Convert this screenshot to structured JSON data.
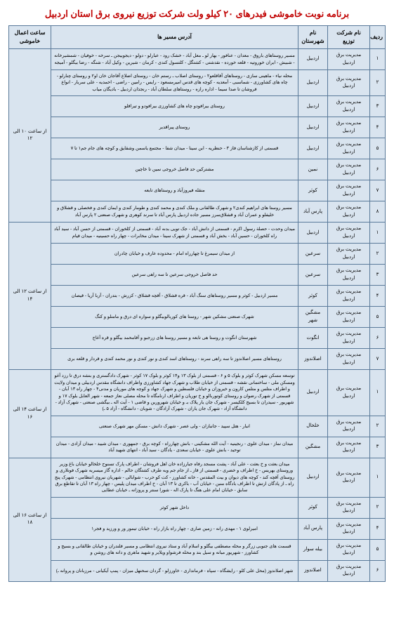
{
  "title": "برنامه نوبت خاموشی فیدرهای ۲۰ کیلو ولت شرکت توزیع نیروی برق استان اردبیل",
  "headers": {
    "row": "ردیف",
    "company": "نام شرکت توزیع",
    "city": "نام شهرستان",
    "addr": "آدرس مسیر ها",
    "time": "ساعت اعمال خاموشی"
  },
  "blocks": [
    {
      "time": "از ساعت ۱۰ الی ۱۲",
      "rows": [
        {
          "n": "۱",
          "company": "مدیریت برق اردبیل",
          "city": "اردبیل",
          "addr": "مسیر روستاهای باروق - معدان - عنافور - بهار لو ـ معل آباد - خشک رود - عبارلو - دولو - دیجوبیجن ـ سرخه - خوفیان - شمشیرخانه - شبیش - ایران خوروتپه - قلعه خورده - نقدشتی - کشتگل - کلتسول کندی - کرمان - شیرین - وکیل آباد - شنگه - رضا بیگلو - آمیجه"
        },
        {
          "n": "۲",
          "company": "مدیریت برق اردبیل",
          "city": "اردبیل",
          "addr": "محله نیاء - ماهینی سازی - روستاهای آقاقلعو۲ - روستای اصلاب ـ رستم خان - روستای اضلاع آقاجان خان او۲ و روستای چنارلو - چاه های کشاورزی - شماسبی - آمعدیه - کوچه های قدس امیرمسعود - رایس - رامین - راضی - احمدیه - علی سربار - انواع فروشان تا صدا سیما - اداره رازه - روستاهای سلطان آباد - رنجذان اردبیل - بادیگان میاب"
        },
        {
          "n": "۳",
          "company": "مدیریت برق اردبیل",
          "city": "اردبیل",
          "addr": "روستای بیرافودو چاه های کشاورزی بیرافودو و تیراقلو"
        },
        {
          "n": "۴",
          "company": "مدیریت برق اردبیل",
          "city": "اردبیل",
          "addr": "روستای پیراقدیر"
        },
        {
          "n": "۵",
          "company": "مدیریت برق اردبیل",
          "city": "اردبیل",
          "addr": "قسمتی از کازشناسان فاز ۳ - حنظریه - ابن سینا - میدان شفا - مجتمع یاسمن وشقایق و کوچه های جام جم۱ تا ۷"
        },
        {
          "n": "۶",
          "company": "مدیریت برق اردبیل",
          "city": "نمین",
          "addr": "مشترکین حد فاصل خروجی نمین تا خاچین"
        },
        {
          "n": "۷",
          "company": "مدیریت برق اردبیل",
          "city": "کوثر",
          "addr": "منقله فیروزآباد و روستاهای تابعه"
        },
        {
          "n": "۸",
          "company": "مدیریت برق اردبیل",
          "city": "پارس آباد",
          "addr": "مسیر روستا های ابراهیم کندی۲ و شهرک طالقانی و ملک کندی و محمد کندی و طومار کندی و ایمان کندی و فخصلی و قشلاق و خلیفلو و عمران آباد و قشلاق‌سرز مسیر جاده اردبیل پارس آباد تا سرند کوهری و شهرک صنعتی ۲ پارس آباد"
        }
      ]
    },
    {
      "time": "از ساعت ۱۲ الی ۱۴",
      "rows": [
        {
          "n": "۱",
          "company": "مدیریت برق اردبیل",
          "city": "اردبیل",
          "addr": "میدان وحدت - حصلة رسول اکرم - قسمتی از دانش آباد - جک تویی بدنه آباد - قسمتی از کلخوران - قسمتی از حسن آباد - سید آباد راه کلخوران - حسین آباد - بخش آباد و قسمتی از شهرک سینا - میدان مخابرات - چهار راه حسینیه - میدان قیام"
        },
        {
          "n": "۲",
          "company": "مدیریت برق اردبیل",
          "city": "سرعین",
          "addr": "از میدان سیمرغ تا چهارراه امام - محدوده عارف و خیابان چادران"
        },
        {
          "n": "۳",
          "company": "مدیریت برق اردبیل",
          "city": "سرعین",
          "addr": "حد فاصل خروجی سرعین تا سه راهی سرعین"
        },
        {
          "n": "۴",
          "company": "مدیریت برق اردبیل",
          "city": "کوثر",
          "addr": "مسیر اردبیل - کوثر و مسیر روستاهای سنگ آباد - قره قشلاق - آقچه قشلاق - کزرش - بتدران - آزبا آریا - قیصان"
        },
        {
          "n": "۵",
          "company": "مدیریت برق اردبیل",
          "city": "مشگین شهر",
          "addr": "شهرک صنعتی مشکین شهر - روستا های کوربالوبیگلو و سواره ای درق و مامنلو و کنگ"
        },
        {
          "n": "۶",
          "company": "مدیریت برق اردبیل",
          "city": "انگوت",
          "addr": "شهرستان انگوت و روستا هی تابعه و مسیر روستا های زرجبو و آقامحمد بیگلو و قره آغاج"
        },
        {
          "n": "۷",
          "company": "مدیریت برق اردبیل",
          "city": "اصلاندوز",
          "addr": "روستاهای مسیر اصلاندوز تا سه راهی سرند - روستاهای اسد کندی و نور کندی و نور محمد کندی و قردار و قلعه بری"
        }
      ]
    },
    {
      "time": "از ساعت ۱۴ الی ۱۶",
      "rows": [
        {
          "n": "۱",
          "company": "مدیریت برق اردبیل",
          "city": "اردبیل",
          "addr": "توسعه مسکن شهرک کوثر و بلوک ۵ و ۶ - قسمتی از بلوک ۱۳ و۱۴ کوثر و بلوک ۱۷ کوثر - شهرک دادگستری و بنشه درق تا رزد آغو ومسکن ملی - ساختمانی نقشه - قسمتی از خیابان طلاب و شهرک جهاد کشاورزی واطراف دانشگاه مقدس اردبیلی و میدان ولایت و اطراف متلس و متلس کارون و خیروزان و خیابان فلسطین و شهرک جهاد و کوچه های موریان و مدنی۴ - چهار راه ۱۳ آبان - قسمتی از شهرک رضوان و روستای کوتوربالو و خ توریان و اطراف ارنامگاه تا محله مصلی نعاز جمعه - شهر العابل بلوک ۱۷ و شهریور - سیدران تا بسیج کلکیسر - شهرک جان یار پلاک بـ و خیابان شهرورین و قاضی ۱ - آیت اله ـ بیگشی صنعتی - شهرک آزاد - دانشگاه آزاد - شهرک جان یاران - شهرک آزادگان - شوبان - دانشگاه - آزاد ۵ ـ)"
        },
        {
          "n": "۲",
          "company": "مدیریت برق اردبیل",
          "city": "خلخال",
          "addr": "انبار - هتل سپید - جانبازان - ولی عصر - شهرک دانش - مسکن مهر شهرک صنعتی"
        },
        {
          "n": "۳",
          "company": "مدیریت برق اردبیل",
          "city": "مشگین",
          "addr": "میدان نماز - میدان علوی - رنجینیه - آیت الله مشکینی - بانش چهارراه - کوچه برق - جمهوری - میدان شیید - میدان آزادی - میدان توحید - بانش علوی - خیابان سعدی - یادگان - سید آباد - انتهای شهید آباد"
        }
      ]
    },
    {
      "time": "از ساعت ۱۶ الی ۱۸",
      "rows": [
        {
          "n": "۱",
          "company": "مدیریت برق اردبیل",
          "city": "اردبیل",
          "addr": "میدان بعثت و خ بعثت - علی آباد - پشت مسجد رفاه جبارزاده خان اهل فروشان - اطراف پارک تسنوح خلخالو خیابان باغ وزیر وروستای بهریس - خ اطراف و خضری - قسمتی از قاز ـ از جام جم وبه طرف کشتگان حالم - اداره گاز میسربه شهرک فونلاری و روستای آقچه کند - کوچه های دیوان و بیت المقدس - خانه کشاورز - کت کو حرب - شوابالی - شهربان نیروی انتظامی - شهرک پنج راه ـ از پادگان ارتش تا اطراف بادگاه منبن - خیابان آب - باکری تا ۱۳ آبان - خ اطراف میدان پلیس - چهار راه ۱۳ آبان تا تقاطع برق سابق - خیابان امام علی هنگ تا پارک اله - شورا سنتر و پروزانه ـ خیابان عطایی"
        },
        {
          "n": "۲",
          "company": "مدیریت برق اردبیل",
          "city": "کوثر",
          "addr": "داخل شهر کوثر"
        },
        {
          "n": "۴",
          "company": "مدیریت برق اردبیل",
          "city": "پارس آباد",
          "addr": "امیرلوی ۱ - مهدی رانه - زمین صاری - چهار راه بازار راه - خیابان تیمور ور و ورزید و فجر۱"
        },
        {
          "n": "۵",
          "company": "مدیریت برق اردبیل",
          "city": "بیله سوار",
          "addr": "قسمت های جنوبی زرگر و محله مصطفی بیگلو و اسلام آباد و ستاد نیروی انتظامی و مسیر فلندران و خیابان طالقانی و بسیج و کشاورز - شهریور میانه و سیل بند و محله فرشواو ویلایر و شهید ماهری و داته های روشن و"
        },
        {
          "n": "۶",
          "company": "مدیریت برق اردبیل",
          "city": "اصلاندوز",
          "addr": "شهر اصلاندوز (محل علی کلو - رایشگاه - سپاه - فرمانداری - خاورزلو - گردان سحنهل میزان - پمپ آیکیانی - مرزبانان و پروانه ـ)"
        }
      ]
    }
  ]
}
